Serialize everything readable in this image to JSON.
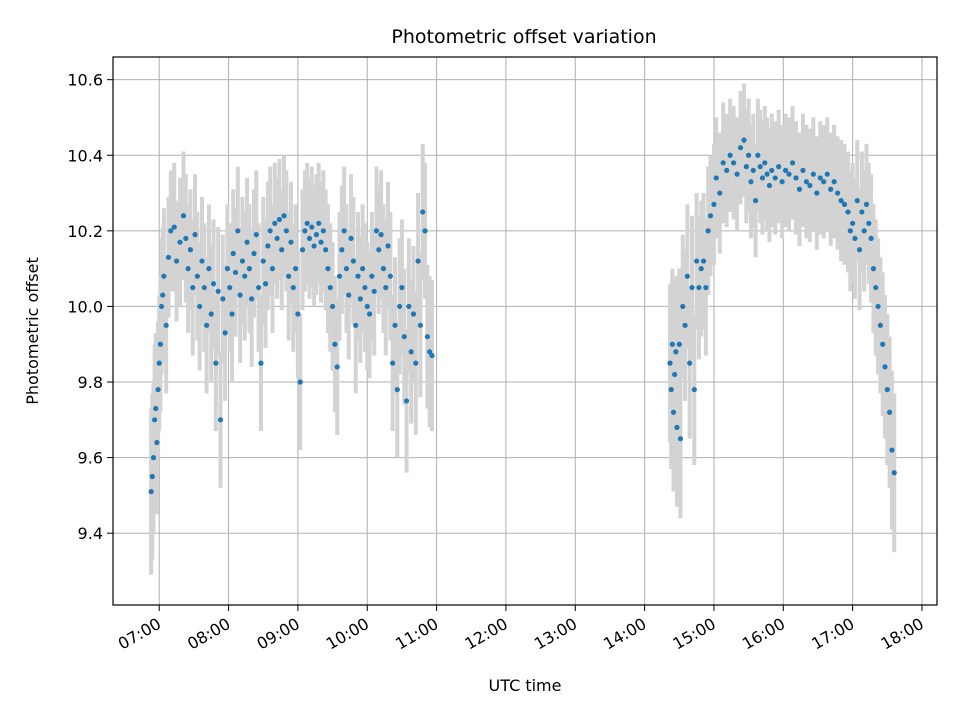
{
  "chart_data": {
    "type": "scatter",
    "title": "Photometric offset variation",
    "xlabel": "UTC time",
    "ylabel": "Photometric offset",
    "x_ticks": [
      "07:00",
      "08:00",
      "09:00",
      "10:00",
      "11:00",
      "12:00",
      "13:00",
      "14:00",
      "15:00",
      "16:00",
      "17:00",
      "18:00"
    ],
    "y_ticks": [
      9.4,
      9.6,
      9.8,
      10.0,
      10.2,
      10.4,
      10.6
    ],
    "xlim": [
      "06:20",
      "18:13"
    ],
    "ylim": [
      9.21,
      10.66
    ],
    "grid": true,
    "point_color": "#1f77b4",
    "errorbar_color": "#d3d3d3",
    "series": [
      {
        "points": [
          [
            "06:53",
            9.51,
            0.22
          ],
          [
            "06:54",
            9.55,
            0.22
          ],
          [
            "06:55",
            9.6,
            0.2
          ],
          [
            "06:56",
            9.7,
            0.2
          ],
          [
            "06:57",
            9.73,
            0.2
          ],
          [
            "06:58",
            9.64,
            0.19
          ],
          [
            "06:59",
            9.78,
            0.18
          ],
          [
            "07:00",
            9.85,
            0.18
          ],
          [
            "07:01",
            9.9,
            0.18
          ],
          [
            "07:02",
            10.0,
            0.18
          ],
          [
            "07:03",
            10.03,
            0.18
          ],
          [
            "07:04",
            10.08,
            0.18
          ],
          [
            "07:06",
            9.95,
            0.18
          ],
          [
            "07:08",
            10.13,
            0.16
          ],
          [
            "07:10",
            10.2,
            0.16
          ],
          [
            "07:13",
            10.21,
            0.17
          ],
          [
            "07:15",
            10.12,
            0.16
          ],
          [
            "07:18",
            10.17,
            0.17
          ],
          [
            "07:21",
            10.24,
            0.17
          ],
          [
            "07:23",
            10.18,
            0.17
          ],
          [
            "07:25",
            10.1,
            0.17
          ],
          [
            "07:27",
            10.15,
            0.16
          ],
          [
            "07:29",
            10.05,
            0.18
          ],
          [
            "07:31",
            10.19,
            0.16
          ],
          [
            "07:33",
            10.08,
            0.17
          ],
          [
            "07:35",
            10.0,
            0.17
          ],
          [
            "07:37",
            10.12,
            0.17
          ],
          [
            "07:39",
            10.05,
            0.17
          ],
          [
            "07:41",
            9.95,
            0.18
          ],
          [
            "07:43",
            10.1,
            0.17
          ],
          [
            "07:45",
            9.98,
            0.18
          ],
          [
            "07:47",
            10.06,
            0.17
          ],
          [
            "07:49",
            9.85,
            0.18
          ],
          [
            "07:51",
            10.04,
            0.17
          ],
          [
            "07:53",
            9.7,
            0.18
          ],
          [
            "07:55",
            10.02,
            0.17
          ],
          [
            "07:57",
            9.93,
            0.18
          ],
          [
            "07:59",
            10.1,
            0.17
          ],
          [
            "08:01",
            10.05,
            0.17
          ],
          [
            "08:03",
            9.98,
            0.18
          ],
          [
            "08:04",
            10.14,
            0.17
          ],
          [
            "08:06",
            10.09,
            0.17
          ],
          [
            "08:08",
            10.2,
            0.17
          ],
          [
            "08:10",
            10.03,
            0.18
          ],
          [
            "08:12",
            10.12,
            0.17
          ],
          [
            "08:14",
            10.08,
            0.17
          ],
          [
            "08:16",
            10.17,
            0.17
          ],
          [
            "08:18",
            10.1,
            0.17
          ],
          [
            "08:20",
            10.02,
            0.18
          ],
          [
            "08:22",
            10.14,
            0.17
          ],
          [
            "08:24",
            10.19,
            0.17
          ],
          [
            "08:26",
            10.05,
            0.17
          ],
          [
            "08:28",
            9.85,
            0.18
          ],
          [
            "08:30",
            10.12,
            0.17
          ],
          [
            "08:32",
            10.06,
            0.17
          ],
          [
            "08:34",
            10.16,
            0.17
          ],
          [
            "08:36",
            10.2,
            0.17
          ],
          [
            "08:38",
            10.1,
            0.17
          ],
          [
            "08:40",
            10.22,
            0.16
          ],
          [
            "08:42",
            10.18,
            0.16
          ],
          [
            "08:44",
            10.23,
            0.16
          ],
          [
            "08:46",
            10.15,
            0.16
          ],
          [
            "08:48",
            10.24,
            0.16
          ],
          [
            "08:50",
            10.2,
            0.16
          ],
          [
            "08:52",
            10.08,
            0.17
          ],
          [
            "08:54",
            10.17,
            0.16
          ],
          [
            "08:56",
            10.05,
            0.17
          ],
          [
            "08:58",
            10.1,
            0.17
          ],
          [
            "09:00",
            9.98,
            0.17
          ],
          [
            "09:02",
            9.8,
            0.18
          ],
          [
            "09:04",
            10.15,
            0.16
          ],
          [
            "09:06",
            10.2,
            0.16
          ],
          [
            "09:08",
            10.22,
            0.16
          ],
          [
            "09:10",
            10.18,
            0.16
          ],
          [
            "09:12",
            10.21,
            0.16
          ],
          [
            "09:14",
            10.16,
            0.16
          ],
          [
            "09:16",
            10.19,
            0.16
          ],
          [
            "09:18",
            10.22,
            0.16
          ],
          [
            "09:20",
            10.17,
            0.16
          ],
          [
            "09:22",
            10.2,
            0.16
          ],
          [
            "09:24",
            10.15,
            0.16
          ],
          [
            "09:26",
            10.1,
            0.17
          ],
          [
            "09:28",
            10.05,
            0.17
          ],
          [
            "09:30",
            10.0,
            0.17
          ],
          [
            "09:32",
            9.9,
            0.18
          ],
          [
            "09:34",
            9.84,
            0.18
          ],
          [
            "09:36",
            10.08,
            0.17
          ],
          [
            "09:38",
            10.15,
            0.17
          ],
          [
            "09:40",
            10.2,
            0.17
          ],
          [
            "09:42",
            10.1,
            0.17
          ],
          [
            "09:44",
            10.03,
            0.17
          ],
          [
            "09:46",
            10.18,
            0.17
          ],
          [
            "09:48",
            10.12,
            0.17
          ],
          [
            "09:50",
            9.95,
            0.18
          ],
          [
            "09:52",
            10.08,
            0.17
          ],
          [
            "09:54",
            10.02,
            0.17
          ],
          [
            "09:56",
            10.1,
            0.17
          ],
          [
            "09:58",
            10.05,
            0.17
          ],
          [
            "10:00",
            10.0,
            0.17
          ],
          [
            "10:02",
            9.98,
            0.17
          ],
          [
            "10:04",
            10.08,
            0.17
          ],
          [
            "10:06",
            10.04,
            0.17
          ],
          [
            "10:08",
            10.2,
            0.17
          ],
          [
            "10:10",
            10.15,
            0.17
          ],
          [
            "10:12",
            10.19,
            0.17
          ],
          [
            "10:14",
            10.1,
            0.17
          ],
          [
            "10:16",
            10.05,
            0.18
          ],
          [
            "10:18",
            10.16,
            0.17
          ],
          [
            "10:20",
            10.08,
            0.17
          ],
          [
            "10:22",
            9.85,
            0.18
          ],
          [
            "10:24",
            9.95,
            0.18
          ],
          [
            "10:26",
            9.78,
            0.18
          ],
          [
            "10:28",
            10.0,
            0.18
          ],
          [
            "10:30",
            10.05,
            0.18
          ],
          [
            "10:32",
            9.92,
            0.18
          ],
          [
            "10:34",
            9.75,
            0.19
          ],
          [
            "10:36",
            10.0,
            0.18
          ],
          [
            "10:38",
            9.88,
            0.19
          ],
          [
            "10:40",
            9.98,
            0.18
          ],
          [
            "10:42",
            9.85,
            0.19
          ],
          [
            "10:44",
            10.12,
            0.18
          ],
          [
            "10:46",
            9.95,
            0.19
          ],
          [
            "10:48",
            10.25,
            0.18
          ],
          [
            "10:50",
            10.2,
            0.18
          ],
          [
            "10:52",
            9.92,
            0.19
          ],
          [
            "10:54",
            9.88,
            0.2
          ],
          [
            "10:56",
            9.87,
            0.2
          ],
          [
            "14:22",
            9.85,
            0.21
          ],
          [
            "14:23",
            9.78,
            0.21
          ],
          [
            "14:24",
            9.9,
            0.2
          ],
          [
            "14:25",
            9.72,
            0.21
          ],
          [
            "14:26",
            9.82,
            0.2
          ],
          [
            "14:27",
            9.88,
            0.2
          ],
          [
            "14:28",
            9.68,
            0.21
          ],
          [
            "14:30",
            9.9,
            0.2
          ],
          [
            "14:31",
            9.65,
            0.21
          ],
          [
            "14:33",
            10.0,
            0.19
          ],
          [
            "14:35",
            9.95,
            0.2
          ],
          [
            "14:37",
            10.08,
            0.19
          ],
          [
            "14:39",
            9.85,
            0.2
          ],
          [
            "14:41",
            10.05,
            0.19
          ],
          [
            "14:43",
            9.78,
            0.2
          ],
          [
            "14:45",
            10.12,
            0.18
          ],
          [
            "14:47",
            10.05,
            0.19
          ],
          [
            "14:49",
            10.1,
            0.18
          ],
          [
            "14:51",
            10.12,
            0.18
          ],
          [
            "14:53",
            10.05,
            0.18
          ],
          [
            "14:55",
            10.2,
            0.17
          ],
          [
            "14:57",
            10.24,
            0.16
          ],
          [
            "15:00",
            10.27,
            0.16
          ],
          [
            "15:02",
            10.34,
            0.16
          ],
          [
            "15:05",
            10.3,
            0.16
          ],
          [
            "15:08",
            10.38,
            0.16
          ],
          [
            "15:11",
            10.36,
            0.15
          ],
          [
            "15:14",
            10.4,
            0.15
          ],
          [
            "15:17",
            10.38,
            0.15
          ],
          [
            "15:20",
            10.35,
            0.15
          ],
          [
            "15:23",
            10.42,
            0.15
          ],
          [
            "15:26",
            10.44,
            0.15
          ],
          [
            "15:28",
            10.37,
            0.15
          ],
          [
            "15:30",
            10.4,
            0.15
          ],
          [
            "15:32",
            10.33,
            0.15
          ],
          [
            "15:34",
            10.36,
            0.15
          ],
          [
            "15:36",
            10.28,
            0.15
          ],
          [
            "15:38",
            10.4,
            0.15
          ],
          [
            "15:40",
            10.37,
            0.15
          ],
          [
            "15:42",
            10.34,
            0.15
          ],
          [
            "15:44",
            10.38,
            0.15
          ],
          [
            "15:46",
            10.35,
            0.15
          ],
          [
            "15:48",
            10.32,
            0.15
          ],
          [
            "15:50",
            10.36,
            0.15
          ],
          [
            "15:53",
            10.34,
            0.15
          ],
          [
            "15:56",
            10.37,
            0.15
          ],
          [
            "15:59",
            10.33,
            0.15
          ],
          [
            "16:02",
            10.36,
            0.15
          ],
          [
            "16:05",
            10.35,
            0.15
          ],
          [
            "16:08",
            10.38,
            0.15
          ],
          [
            "16:11",
            10.34,
            0.15
          ],
          [
            "16:14",
            10.31,
            0.15
          ],
          [
            "16:17",
            10.36,
            0.15
          ],
          [
            "16:20",
            10.33,
            0.15
          ],
          [
            "16:23",
            10.32,
            0.15
          ],
          [
            "16:26",
            10.35,
            0.15
          ],
          [
            "16:29",
            10.3,
            0.15
          ],
          [
            "16:32",
            10.34,
            0.15
          ],
          [
            "16:35",
            10.33,
            0.15
          ],
          [
            "16:38",
            10.35,
            0.15
          ],
          [
            "16:41",
            10.31,
            0.15
          ],
          [
            "16:44",
            10.33,
            0.15
          ],
          [
            "16:47",
            10.3,
            0.15
          ],
          [
            "16:50",
            10.28,
            0.16
          ],
          [
            "16:53",
            10.27,
            0.16
          ],
          [
            "16:56",
            10.25,
            0.16
          ],
          [
            "16:58",
            10.2,
            0.16
          ],
          [
            "17:00",
            10.22,
            0.16
          ],
          [
            "17:02",
            10.18,
            0.16
          ],
          [
            "17:04",
            10.28,
            0.16
          ],
          [
            "17:06",
            10.15,
            0.16
          ],
          [
            "17:08",
            10.25,
            0.16
          ],
          [
            "17:10",
            10.2,
            0.16
          ],
          [
            "17:12",
            10.27,
            0.16
          ],
          [
            "17:14",
            10.22,
            0.16
          ],
          [
            "17:16",
            10.18,
            0.17
          ],
          [
            "17:18",
            10.1,
            0.17
          ],
          [
            "17:20",
            10.05,
            0.18
          ],
          [
            "17:22",
            10.0,
            0.18
          ],
          [
            "17:24",
            9.95,
            0.18
          ],
          [
            "17:26",
            9.9,
            0.19
          ],
          [
            "17:28",
            9.84,
            0.19
          ],
          [
            "17:30",
            9.78,
            0.2
          ],
          [
            "17:32",
            9.72,
            0.2
          ],
          [
            "17:34",
            9.62,
            0.21
          ],
          [
            "17:36",
            9.56,
            0.21
          ]
        ]
      }
    ]
  }
}
